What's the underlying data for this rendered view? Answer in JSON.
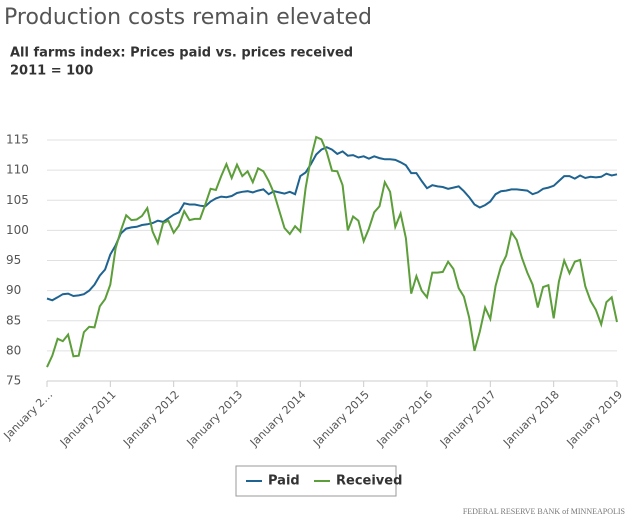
{
  "chart_data": {
    "type": "line",
    "title": "Production costs remain elevated",
    "subtitle": [
      "All farms index: Prices paid vs. prices received",
      "2011 = 100"
    ],
    "source": "FEDERAL RESERVE BANK of MINNEAPOLIS",
    "categories": [
      "January 2…",
      null,
      null,
      null,
      null,
      null,
      null,
      null,
      null,
      null,
      null,
      null,
      "January 2011",
      null,
      null,
      null,
      null,
      null,
      null,
      null,
      null,
      null,
      null,
      null,
      "January 2012",
      null,
      null,
      null,
      null,
      null,
      null,
      null,
      null,
      null,
      null,
      null,
      "January 2013",
      null,
      null,
      null,
      null,
      null,
      null,
      null,
      null,
      null,
      null,
      null,
      "January 2014",
      null,
      null,
      null,
      null,
      null,
      null,
      null,
      null,
      null,
      null,
      null,
      "January 2015",
      null,
      null,
      null,
      null,
      null,
      null,
      null,
      null,
      null,
      null,
      null,
      "January 2016",
      null,
      null,
      null,
      null,
      null,
      null,
      null,
      null,
      null,
      null,
      null,
      "January 2017",
      null,
      null,
      null,
      null,
      null,
      null,
      null,
      null,
      null,
      null,
      null,
      "January 2018",
      null,
      null,
      null,
      null,
      null,
      null,
      null,
      null,
      null,
      null,
      null,
      "January 2019"
    ],
    "series": [
      {
        "name": "Paid",
        "color": "#1f6391",
        "values": [
          88.7,
          88.4,
          88.9,
          89.4,
          89.5,
          89.1,
          89.2,
          89.4,
          90.0,
          91.0,
          92.5,
          93.5,
          96.0,
          97.5,
          99.5,
          100.3,
          100.5,
          100.6,
          100.9,
          101.0,
          101.2,
          101.6,
          101.4,
          102.0,
          102.6,
          103.0,
          104.5,
          104.3,
          104.3,
          104.1,
          104.0,
          104.8,
          105.3,
          105.6,
          105.5,
          105.7,
          106.2,
          106.4,
          106.5,
          106.3,
          106.6,
          106.8,
          106.0,
          106.5,
          106.3,
          106.1,
          106.4,
          106.0,
          109.0,
          109.6,
          111.0,
          112.6,
          113.4,
          113.8,
          113.4,
          112.7,
          113.1,
          112.4,
          112.5,
          112.1,
          112.3,
          111.9,
          112.3,
          112.0,
          111.8,
          111.8,
          111.7,
          111.3,
          110.8,
          109.5,
          109.5,
          108.2,
          107.0,
          107.5,
          107.3,
          107.2,
          106.9,
          107.1,
          107.3,
          106.5,
          105.5,
          104.3,
          103.8,
          104.2,
          104.8,
          106.0,
          106.5,
          106.6,
          106.8,
          106.8,
          106.7,
          106.6,
          106.0,
          106.3,
          106.9,
          107.1,
          107.4,
          108.2,
          109.0,
          109.0,
          108.6,
          109.1,
          108.7,
          108.9,
          108.8,
          108.9,
          109.4,
          109.1,
          109.3
        ]
      },
      {
        "name": "Received",
        "color": "#5c9e3a",
        "values": [
          77.3,
          79.2,
          82.0,
          81.6,
          82.7,
          79.1,
          79.2,
          83.1,
          84.0,
          83.9,
          87.4,
          88.6,
          91.0,
          97.0,
          100.0,
          102.5,
          101.7,
          101.8,
          102.4,
          103.7,
          99.8,
          97.9,
          101.2,
          101.6,
          99.6,
          100.8,
          103.2,
          101.7,
          101.9,
          101.9,
          104.3,
          106.9,
          106.7,
          109.0,
          111.0,
          108.7,
          110.9,
          109.0,
          109.8,
          108.0,
          110.3,
          109.8,
          108.2,
          106.2,
          103.3,
          100.4,
          99.4,
          100.7,
          99.8,
          107.0,
          112.0,
          115.5,
          115.1,
          113.0,
          109.9,
          109.8,
          107.5,
          100.0,
          102.3,
          101.6,
          98.2,
          100.3,
          103.0,
          104.0,
          108.0,
          106.4,
          100.6,
          102.8,
          98.7,
          89.5,
          92.4,
          90.0,
          88.9,
          93.0,
          93.0,
          93.1,
          94.8,
          93.6,
          90.4,
          89.0,
          85.5,
          80.0,
          83.2,
          87.2,
          85.3,
          90.8,
          94.0,
          95.8,
          99.7,
          98.4,
          95.4,
          93.0,
          91.0,
          87.2,
          90.6,
          90.9,
          85.4,
          91.5,
          95.0,
          92.9,
          94.8,
          95.1,
          90.7,
          88.3,
          86.8,
          84.4,
          88.1,
          88.9,
          84.8
        ]
      }
    ],
    "ylim": [
      75,
      116
    ],
    "yticks": [
      75,
      80,
      85,
      90,
      95,
      100,
      105,
      110,
      115
    ],
    "grid": true,
    "legend": "bottom"
  }
}
